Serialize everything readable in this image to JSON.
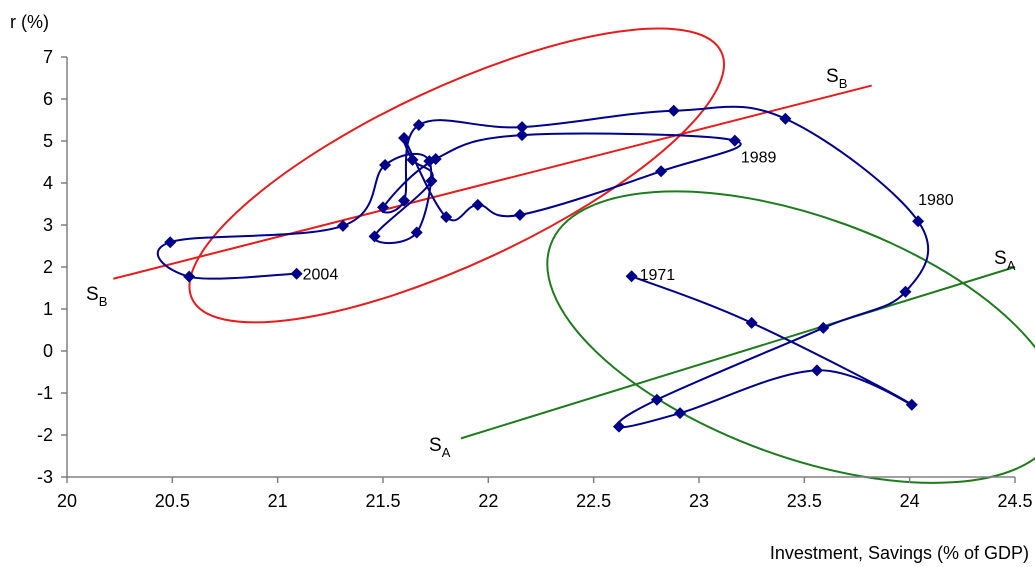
{
  "chart_data": {
    "type": "scatter",
    "title": "",
    "xlabel": "Investment, Savings (% of GDP)",
    "ylabel": "r (%)",
    "xlim": [
      20,
      24.5
    ],
    "ylim": [
      -3,
      7
    ],
    "xticks": [
      "20",
      "20.5",
      "21",
      "21.5",
      "22",
      "22.5",
      "23",
      "23.5",
      "24",
      "24.5"
    ],
    "yticks": [
      "-3",
      "-2",
      "-1",
      "0",
      "1",
      "2",
      "3",
      "4",
      "5",
      "6",
      "7"
    ],
    "grid": false,
    "legend": "none",
    "colors": {
      "series": "#00008b",
      "schedule_a": "#1e7b1e",
      "schedule_b": "#e81c1c",
      "axis": "#808080"
    },
    "series": [
      {
        "points": [
          [
            22.68,
            1.78
          ],
          [
            23.25,
            0.67
          ],
          [
            24.01,
            -1.28
          ],
          [
            23.56,
            -0.46
          ],
          [
            22.91,
            -1.48
          ],
          [
            22.62,
            -1.8
          ],
          [
            22.8,
            -1.16
          ],
          [
            23.59,
            0.55
          ],
          [
            23.98,
            1.41
          ],
          [
            24.04,
            3.09
          ],
          [
            23.41,
            5.53
          ],
          [
            22.88,
            5.72
          ],
          [
            22.16,
            5.33
          ],
          [
            21.67,
            5.38
          ],
          [
            21.6,
            3.58
          ],
          [
            21.5,
            3.42
          ],
          [
            21.75,
            4.57
          ],
          [
            22.16,
            5.14
          ],
          [
            23.17,
            5.01
          ],
          [
            22.82,
            4.28
          ],
          [
            22.15,
            3.24
          ],
          [
            21.95,
            3.48
          ],
          [
            21.8,
            3.19
          ],
          [
            21.6,
            5.07
          ],
          [
            21.64,
            4.55
          ],
          [
            21.73,
            4.05
          ],
          [
            21.46,
            2.73
          ],
          [
            21.66,
            2.82
          ],
          [
            21.72,
            4.52
          ],
          [
            21.51,
            4.43
          ],
          [
            21.31,
            2.98
          ],
          [
            20.49,
            2.59
          ],
          [
            20.58,
            1.77
          ],
          [
            21.09,
            1.84
          ]
        ],
        "annotations": [
          {
            "text": "1971",
            "x": 22.68,
            "y": 1.78
          },
          {
            "text": "1980",
            "x": 24.04,
            "y": 3.09
          },
          {
            "text": "1989",
            "x": 23.17,
            "y": 5.01
          },
          {
            "text": "2004",
            "x": 21.09,
            "y": 1.84
          }
        ]
      }
    ],
    "lines": [
      {
        "label_main": "S",
        "label_sub": "B",
        "from": [
          20.22,
          1.72
        ],
        "to": [
          23.82,
          6.32
        ]
      },
      {
        "label_main": "S",
        "label_sub": "A",
        "from": [
          21.87,
          -2.08
        ],
        "to": [
          24.5,
          2.0
        ]
      }
    ],
    "ellipses": [
      {
        "label_main": "S",
        "label_sub": "B",
        "center": [
          21.85,
          4.18
        ],
        "rx": 1.75,
        "ry": 1.8,
        "rotation": -25
      },
      {
        "label_main": "S",
        "label_sub": "A",
        "center": [
          23.5,
          0.33
        ],
        "rx": 1.05,
        "ry": 2.9,
        "rotation": 20
      }
    ]
  }
}
